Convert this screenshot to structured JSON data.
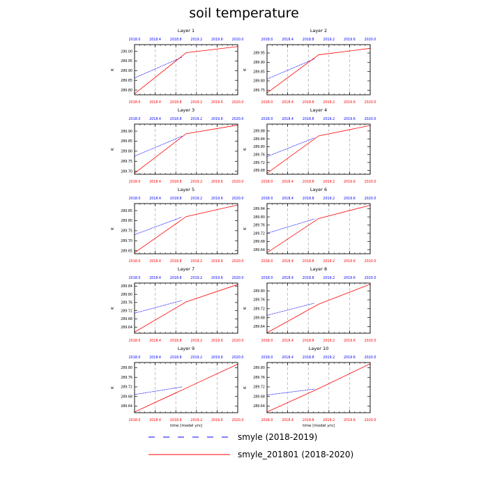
{
  "title": "soil temperature",
  "colors": {
    "smyle": "#0000ff",
    "smyle_201801": "#ff0000",
    "grid": "#999999"
  },
  "legend": [
    {
      "label": "smyle (2018-2019)",
      "color": "#0000ff",
      "style": "dashed"
    },
    {
      "label": "smyle_201801 (2018-2020)",
      "color": "#ff0000",
      "style": "solid"
    }
  ],
  "chart_data": [
    {
      "type": "line",
      "title": "Layer 1",
      "ylabel": "K",
      "xlabel": "",
      "xlim": [
        2018.0,
        2020.0
      ],
      "ylim": [
        289.775,
        290.035
      ],
      "xticks": [
        "2018.0",
        "2018.4",
        "2018.8",
        "2019.2",
        "2019.6",
        "2020.0"
      ],
      "yticks": [
        "289.80",
        "289.85",
        "289.90",
        "289.95",
        "290.00"
      ],
      "ytick_values": [
        289.8,
        289.85,
        289.9,
        289.95,
        290.0
      ],
      "series": [
        {
          "name": "smyle (2018-2019)",
          "x": [
            2018.0,
            2018.92
          ],
          "y": [
            289.862,
            289.97
          ]
        },
        {
          "name": "smyle_201801 (2018-2020)",
          "x": [
            2018.0,
            2019.0,
            2020.0
          ],
          "y": [
            289.78,
            289.993,
            290.025
          ]
        }
      ]
    },
    {
      "type": "line",
      "title": "Layer 2",
      "ylabel": "K",
      "xlabel": "",
      "xlim": [
        2018.0,
        2020.0
      ],
      "ylim": [
        289.725,
        289.995
      ],
      "xticks": [
        "2018.0",
        "2018.4",
        "2018.8",
        "2019.2",
        "2019.6",
        "2020.0"
      ],
      "yticks": [
        "289.75",
        "289.80",
        "289.85",
        "289.90",
        "289.95"
      ],
      "ytick_values": [
        289.75,
        289.8,
        289.85,
        289.9,
        289.95
      ],
      "series": [
        {
          "name": "smyle (2018-2019)",
          "x": [
            2018.0,
            2018.92
          ],
          "y": [
            289.81,
            289.918
          ]
        },
        {
          "name": "smyle_201801 (2018-2020)",
          "x": [
            2018.0,
            2019.0,
            2020.0
          ],
          "y": [
            289.735,
            289.94,
            289.975
          ]
        }
      ]
    },
    {
      "type": "line",
      "title": "Layer 3",
      "ylabel": "K",
      "xlabel": "",
      "xlim": [
        2018.0,
        2020.0
      ],
      "ylim": [
        289.685,
        289.935
      ],
      "xticks": [
        "2018.0",
        "2018.4",
        "2018.8",
        "2019.2",
        "2019.6",
        "2020.0"
      ],
      "yticks": [
        "289.70",
        "289.75",
        "289.80",
        "289.85",
        "289.90"
      ],
      "ytick_values": [
        289.7,
        289.75,
        289.8,
        289.85,
        289.9
      ],
      "series": [
        {
          "name": "smyle (2018-2019)",
          "x": [
            2018.0,
            2018.92
          ],
          "y": [
            289.775,
            289.875
          ]
        },
        {
          "name": "smyle_201801 (2018-2020)",
          "x": [
            2018.0,
            2019.0,
            2020.0
          ],
          "y": [
            289.69,
            289.887,
            289.93
          ]
        }
      ]
    },
    {
      "type": "line",
      "title": "Layer 4",
      "ylabel": "K",
      "xlabel": "",
      "xlim": [
        2018.0,
        2020.0
      ],
      "ylim": [
        289.66,
        289.915
      ],
      "xticks": [
        "2018.0",
        "2018.4",
        "2018.8",
        "2019.2",
        "2019.6",
        "2020.0"
      ],
      "yticks": [
        "289.68",
        "289.72",
        "289.76",
        "289.80",
        "289.84",
        "289.88"
      ],
      "ytick_values": [
        289.68,
        289.72,
        289.76,
        289.8,
        289.84,
        289.88
      ],
      "series": [
        {
          "name": "smyle (2018-2019)",
          "x": [
            2018.0,
            2018.92
          ],
          "y": [
            289.75,
            289.845
          ]
        },
        {
          "name": "smyle_201801 (2018-2020)",
          "x": [
            2018.0,
            2019.0,
            2020.0
          ],
          "y": [
            289.665,
            289.855,
            289.908
          ]
        }
      ]
    },
    {
      "type": "line",
      "title": "Layer 5",
      "ylabel": "K",
      "xlabel": "",
      "xlim": [
        2018.0,
        2020.0
      ],
      "ylim": [
        289.635,
        289.885
      ],
      "xticks": [
        "2018.0",
        "2018.4",
        "2018.8",
        "2019.2",
        "2019.6",
        "2020.0"
      ],
      "yticks": [
        "289.65",
        "289.70",
        "289.75",
        "289.80",
        "289.85"
      ],
      "ytick_values": [
        289.65,
        289.7,
        289.75,
        289.8,
        289.85
      ],
      "series": [
        {
          "name": "smyle (2018-2019)",
          "x": [
            2018.0,
            2018.92
          ],
          "y": [
            289.73,
            289.818
          ]
        },
        {
          "name": "smyle_201801 (2018-2020)",
          "x": [
            2018.0,
            2019.0,
            2020.0
          ],
          "y": [
            289.64,
            289.82,
            289.878
          ]
        }
      ]
    },
    {
      "type": "line",
      "title": "Layer 6",
      "ylabel": "K",
      "xlabel": "",
      "xlim": [
        2018.0,
        2020.0
      ],
      "ylim": [
        289.62,
        289.865
      ],
      "xticks": [
        "2018.0",
        "2018.4",
        "2018.8",
        "2019.2",
        "2019.6",
        "2020.0"
      ],
      "yticks": [
        "289.64",
        "289.68",
        "289.72",
        "289.76",
        "289.80",
        "289.84"
      ],
      "ytick_values": [
        289.64,
        289.68,
        289.72,
        289.76,
        289.8,
        289.84
      ],
      "series": [
        {
          "name": "smyle (2018-2019)",
          "x": [
            2018.0,
            2018.92
          ],
          "y": [
            289.72,
            289.79
          ]
        },
        {
          "name": "smyle_201801 (2018-2020)",
          "x": [
            2018.0,
            2019.0,
            2020.0
          ],
          "y": [
            289.625,
            289.792,
            289.857
          ]
        }
      ]
    },
    {
      "type": "line",
      "title": "Layer 7",
      "ylabel": "K",
      "xlabel": "",
      "xlim": [
        2018.0,
        2020.0
      ],
      "ylim": [
        289.61,
        289.855
      ],
      "xticks": [
        "2018.0",
        "2018.4",
        "2018.8",
        "2019.2",
        "2019.6",
        "2020.0"
      ],
      "yticks": [
        "289.64",
        "289.68",
        "289.72",
        "289.76",
        "289.80",
        "289.84"
      ],
      "ytick_values": [
        289.64,
        289.68,
        289.72,
        289.76,
        289.8,
        289.84
      ],
      "series": [
        {
          "name": "smyle (2018-2019)",
          "x": [
            2018.0,
            2018.92
          ],
          "y": [
            289.708,
            289.77
          ]
        },
        {
          "name": "smyle_201801 (2018-2020)",
          "x": [
            2018.0,
            2019.0,
            2020.0
          ],
          "y": [
            289.615,
            289.763,
            289.848
          ]
        }
      ]
    },
    {
      "type": "line",
      "title": "Layer 8",
      "ylabel": "K",
      "xlabel": "",
      "xlim": [
        2018.0,
        2020.0
      ],
      "ylim": [
        289.61,
        289.835
      ],
      "xticks": [
        "2018.0",
        "2018.4",
        "2018.8",
        "2019.2",
        "2019.6",
        "2020.0"
      ],
      "yticks": [
        "289.64",
        "289.68",
        "289.72",
        "289.76",
        "289.80"
      ],
      "ytick_values": [
        289.64,
        289.68,
        289.72,
        289.76,
        289.8
      ],
      "series": [
        {
          "name": "smyle (2018-2019)",
          "x": [
            2018.0,
            2018.92
          ],
          "y": [
            289.69,
            289.745
          ]
        },
        {
          "name": "smyle_201801 (2018-2020)",
          "x": [
            2018.0,
            2019.0,
            2020.0
          ],
          "y": [
            289.612,
            289.74,
            289.83
          ]
        }
      ]
    },
    {
      "type": "line",
      "title": "Layer 9",
      "ylabel": "K",
      "xlabel": "time [model yrs]",
      "xlim": [
        2018.0,
        2020.0
      ],
      "ylim": [
        289.612,
        289.822
      ],
      "xticks": [
        "2018.0",
        "2018.4",
        "2018.8",
        "2019.2",
        "2019.6",
        "2020.0"
      ],
      "yticks": [
        "289.64",
        "289.68",
        "289.72",
        "289.76",
        "289.80"
      ],
      "ytick_values": [
        289.64,
        289.68,
        289.72,
        289.76,
        289.8
      ],
      "series": [
        {
          "name": "smyle (2018-2019)",
          "x": [
            2018.0,
            2018.92
          ],
          "y": [
            289.688,
            289.72
          ]
        },
        {
          "name": "smyle_201801 (2018-2020)",
          "x": [
            2018.0,
            2019.0,
            2020.0
          ],
          "y": [
            289.615,
            289.715,
            289.815
          ]
        }
      ]
    },
    {
      "type": "line",
      "title": "Layer 10",
      "ylabel": "K",
      "xlabel": "time [model yrs]",
      "xlim": [
        2018.0,
        2020.0
      ],
      "ylim": [
        289.612,
        289.822
      ],
      "xticks": [
        "2018.0",
        "2018.4",
        "2018.8",
        "2019.2",
        "2019.6",
        "2020.0"
      ],
      "yticks": [
        "289.64",
        "289.68",
        "289.72",
        "289.76",
        "289.80"
      ],
      "ytick_values": [
        289.64,
        289.68,
        289.72,
        289.76,
        289.8
      ],
      "series": [
        {
          "name": "smyle (2018-2019)",
          "x": [
            2018.0,
            2018.92
          ],
          "y": [
            289.686,
            289.711
          ]
        },
        {
          "name": "smyle_201801 (2018-2020)",
          "x": [
            2018.0,
            2019.0,
            2020.0
          ],
          "y": [
            289.615,
            289.713,
            289.817
          ]
        }
      ]
    }
  ]
}
